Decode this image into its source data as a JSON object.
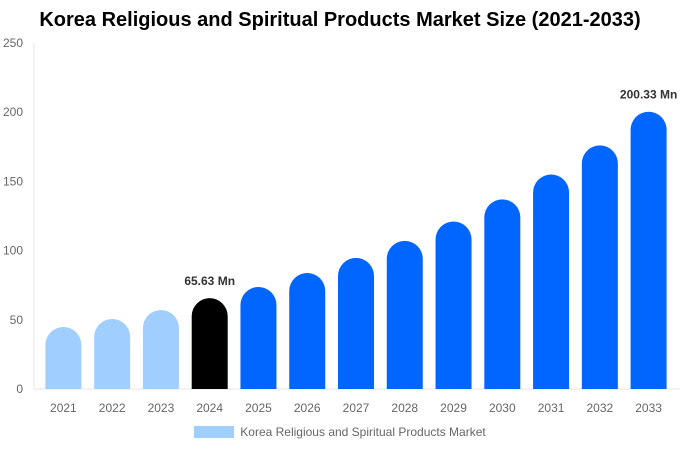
{
  "chart_data": {
    "type": "bar",
    "title": "Korea Religious and Spiritual Products Market Size (2021-2033)",
    "categories": [
      "2021",
      "2022",
      "2023",
      "2024",
      "2025",
      "2026",
      "2027",
      "2028",
      "2029",
      "2030",
      "2031",
      "2032",
      "2033"
    ],
    "series": [
      {
        "name": "Korea Religious and Spiritual Products Market",
        "values": [
          44.8,
          50.6,
          57.1,
          65.63,
          73.7,
          83.8,
          94.7,
          107,
          121,
          137,
          155,
          176,
          200.33
        ]
      }
    ],
    "data_labels": {
      "2024": "65.63 Mn",
      "2033": "200.33 Mn"
    },
    "ylim": [
      0,
      250
    ],
    "yticks": [
      0,
      50,
      100,
      150,
      200,
      250
    ],
    "grid": false,
    "legend": "bottom",
    "colors": {
      "historical": "#a0cfff",
      "base_year": "#000000",
      "forecast": "#0066ff"
    }
  }
}
